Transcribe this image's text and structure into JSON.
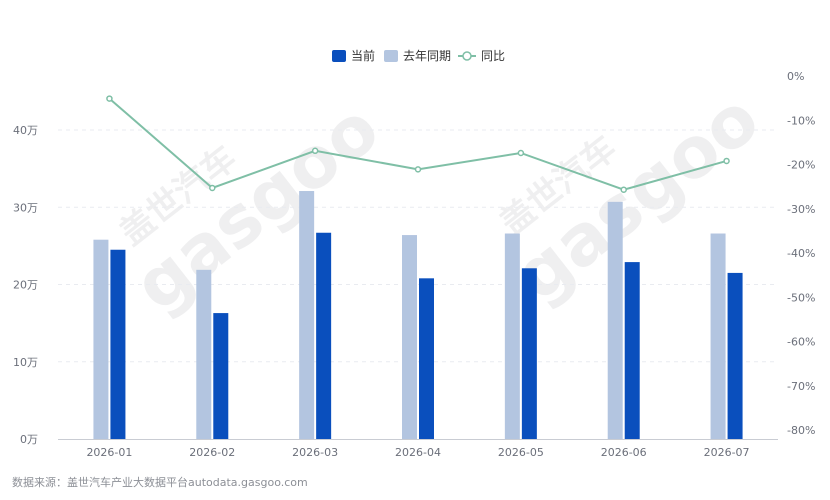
{
  "chart_data": {
    "type": "bar+line",
    "categories": [
      "2026-01",
      "2026-02",
      "2026-03",
      "2026-04",
      "2026-05",
      "2026-06",
      "2026-07"
    ],
    "series": [
      {
        "name": "当前",
        "type": "bar",
        "axis": "left",
        "color": "#0a4fbd",
        "values": [
          24.5,
          16.3,
          26.7,
          20.8,
          22.1,
          22.9,
          21.5
        ]
      },
      {
        "name": "去年同期",
        "type": "bar",
        "axis": "left",
        "color": "#b3c5e0",
        "values": [
          25.8,
          21.9,
          32.1,
          26.4,
          26.6,
          30.7,
          26.6
        ]
      },
      {
        "name": "同比",
        "type": "line",
        "axis": "right",
        "color": "#7fbfa6",
        "values": [
          -5.1,
          -25.3,
          -16.9,
          -21.1,
          -17.4,
          -25.7,
          -19.2
        ]
      }
    ],
    "y_left": {
      "ticks": [
        "0万",
        "10万",
        "20万",
        "30万",
        "40万"
      ],
      "min": 0,
      "max": 40
    },
    "y_right": {
      "ticks": [
        "0%",
        "-10%",
        "-20%",
        "-30%",
        "-40%",
        "-50%",
        "-60%",
        "-70%",
        "-80%"
      ],
      "min": -80,
      "max": 0
    },
    "legend_position": "top-center",
    "grid": true
  },
  "source": "数据来源：盖世汽车产业大数据平台autodata.gasgoo.com",
  "watermark": {
    "brand": "盖世汽车",
    "logo": "gasgoo"
  }
}
